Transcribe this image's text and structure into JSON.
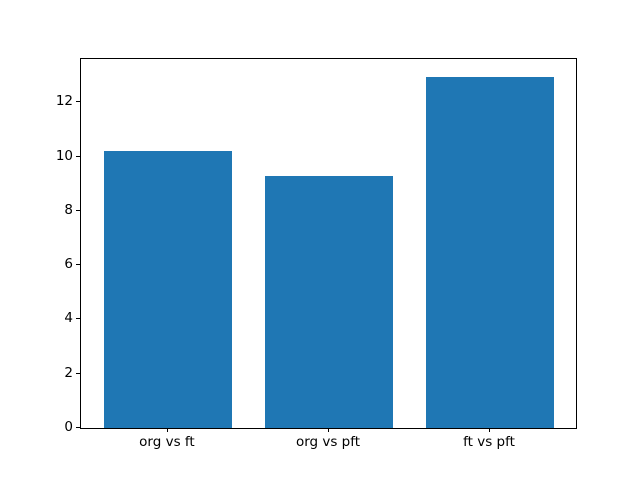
{
  "chart_data": {
    "type": "bar",
    "categories": [
      "org vs ft",
      "org vs pft",
      "ft vs pft"
    ],
    "values": [
      10.2,
      9.3,
      12.95
    ],
    "title": "",
    "xlabel": "",
    "ylabel": "",
    "ylim": [
      0,
      13.6
    ],
    "yticks": [
      0,
      2,
      4,
      6,
      8,
      10,
      12
    ],
    "bar_color": "#1f77b4",
    "bar_width_fraction": 0.8,
    "x_margin_fraction": 0.05,
    "grid": false,
    "legend_position": "none",
    "background_color": "#ffffff",
    "spine_color": "#000000",
    "tick_color": "#000000"
  }
}
